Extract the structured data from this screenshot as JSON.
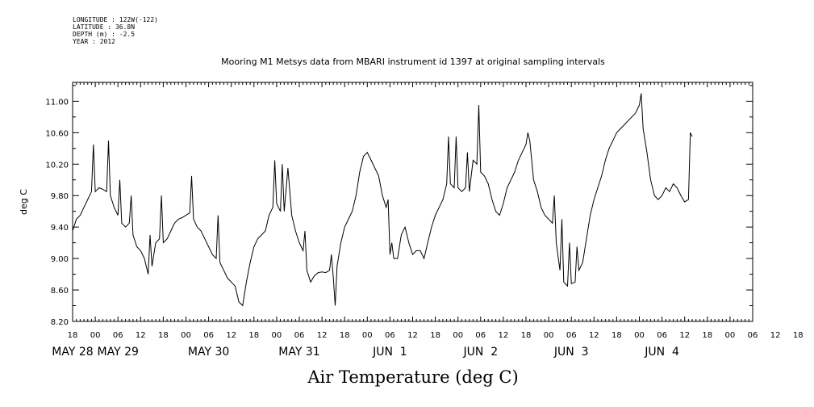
{
  "metadata_lines": [
    "LONGITUDE : 122W(-122)",
    "LATITUDE : 36.8N",
    "DEPTH (m) : -2.5",
    "YEAR : 2012"
  ],
  "chart_data": {
    "type": "line",
    "title": "Mooring M1 Metsys data from MBARI instrument id 1397 at original sampling intervals",
    "xlabel": "Air Temperature (deg C)",
    "ylabel": "deg C",
    "ylim": [
      8.2,
      11.24
    ],
    "y_ticks": [
      "8.20",
      "8.60",
      "9.00",
      "9.40",
      "9.80",
      "10.20",
      "10.60",
      "11.00"
    ],
    "x_range_hours": [
      -6,
      174
    ],
    "x_hour_ticks": [
      "18",
      "00",
      "06",
      "12",
      "18",
      "00",
      "06",
      "12",
      "18",
      "00",
      "06",
      "12",
      "18",
      "00",
      "06",
      "12",
      "18",
      "00",
      "06",
      "12",
      "18",
      "00",
      "06",
      "12",
      "18",
      "00",
      "06",
      "12",
      "18",
      "00",
      "06",
      "12",
      "18"
    ],
    "x_date_labels": [
      {
        "label": "MAY 28",
        "hour": -6
      },
      {
        "label": "MAY 29",
        "hour": 6
      },
      {
        "label": "MAY 30",
        "hour": 30
      },
      {
        "label": "MAY 31",
        "hour": 54
      },
      {
        "label": "JUN  1",
        "hour": 78
      },
      {
        "label": "JUN  2",
        "hour": 102
      },
      {
        "label": "JUN  3",
        "hour": 126
      },
      {
        "label": "JUN  4",
        "hour": 150
      }
    ],
    "grid": false,
    "series_points": [
      [
        -6,
        9.35
      ],
      [
        -5,
        9.5
      ],
      [
        -4,
        9.55
      ],
      [
        -3,
        9.65
      ],
      [
        -2,
        9.75
      ],
      [
        -1,
        9.85
      ],
      [
        -0.5,
        10.45
      ],
      [
        0,
        9.85
      ],
      [
        1,
        9.9
      ],
      [
        2,
        9.88
      ],
      [
        3,
        9.85
      ],
      [
        3.5,
        10.5
      ],
      [
        4,
        9.8
      ],
      [
        5,
        9.65
      ],
      [
        6,
        9.55
      ],
      [
        6.5,
        10.0
      ],
      [
        7,
        9.45
      ],
      [
        8,
        9.4
      ],
      [
        9,
        9.45
      ],
      [
        9.5,
        9.8
      ],
      [
        10,
        9.3
      ],
      [
        11,
        9.15
      ],
      [
        12,
        9.1
      ],
      [
        13,
        9.0
      ],
      [
        14,
        8.8
      ],
      [
        14.5,
        9.3
      ],
      [
        15,
        8.9
      ],
      [
        16,
        9.2
      ],
      [
        17,
        9.25
      ],
      [
        17.5,
        9.8
      ],
      [
        18,
        9.2
      ],
      [
        19,
        9.25
      ],
      [
        20,
        9.35
      ],
      [
        21,
        9.45
      ],
      [
        22,
        9.5
      ],
      [
        23,
        9.52
      ],
      [
        24,
        9.55
      ],
      [
        25,
        9.58
      ],
      [
        25.5,
        10.05
      ],
      [
        26,
        9.5
      ],
      [
        27,
        9.4
      ],
      [
        28,
        9.35
      ],
      [
        29,
        9.25
      ],
      [
        30,
        9.15
      ],
      [
        31,
        9.05
      ],
      [
        32,
        9.0
      ],
      [
        32.5,
        9.55
      ],
      [
        33,
        8.95
      ],
      [
        34,
        8.85
      ],
      [
        35,
        8.75
      ],
      [
        36,
        8.7
      ],
      [
        37,
        8.65
      ],
      [
        38,
        8.45
      ],
      [
        39,
        8.4
      ],
      [
        40,
        8.7
      ],
      [
        41,
        8.95
      ],
      [
        42,
        9.15
      ],
      [
        43,
        9.25
      ],
      [
        44,
        9.3
      ],
      [
        45,
        9.35
      ],
      [
        46,
        9.55
      ],
      [
        47,
        9.65
      ],
      [
        47.5,
        10.25
      ],
      [
        48,
        9.7
      ],
      [
        49,
        9.6
      ],
      [
        49.5,
        10.2
      ],
      [
        50,
        9.6
      ],
      [
        51,
        10.15
      ],
      [
        52,
        9.55
      ],
      [
        53,
        9.35
      ],
      [
        54,
        9.2
      ],
      [
        55,
        9.1
      ],
      [
        55.5,
        9.35
      ],
      [
        56,
        8.85
      ],
      [
        57,
        8.7
      ],
      [
        58,
        8.78
      ],
      [
        59,
        8.82
      ],
      [
        60,
        8.83
      ],
      [
        61,
        8.82
      ],
      [
        62,
        8.85
      ],
      [
        62.5,
        9.05
      ],
      [
        63,
        8.75
      ],
      [
        63.5,
        8.4
      ],
      [
        64,
        8.9
      ],
      [
        65,
        9.2
      ],
      [
        66,
        9.4
      ],
      [
        67,
        9.5
      ],
      [
        68,
        9.6
      ],
      [
        69,
        9.8
      ],
      [
        70,
        10.1
      ],
      [
        71,
        10.3
      ],
      [
        72,
        10.35
      ],
      [
        73,
        10.25
      ],
      [
        74,
        10.15
      ],
      [
        75,
        10.05
      ],
      [
        76,
        9.8
      ],
      [
        77,
        9.65
      ],
      [
        77.5,
        9.75
      ],
      [
        78,
        9.05
      ],
      [
        78.5,
        9.2
      ],
      [
        79,
        9.0
      ],
      [
        80,
        9.0
      ],
      [
        81,
        9.3
      ],
      [
        82,
        9.4
      ],
      [
        83,
        9.2
      ],
      [
        84,
        9.05
      ],
      [
        85,
        9.1
      ],
      [
        86,
        9.1
      ],
      [
        87,
        9.0
      ],
      [
        88,
        9.2
      ],
      [
        89,
        9.4
      ],
      [
        90,
        9.55
      ],
      [
        91,
        9.65
      ],
      [
        92,
        9.75
      ],
      [
        93,
        9.95
      ],
      [
        93.5,
        10.55
      ],
      [
        94,
        9.95
      ],
      [
        95,
        9.9
      ],
      [
        95.5,
        10.55
      ],
      [
        96,
        9.9
      ],
      [
        97,
        9.85
      ],
      [
        98,
        9.9
      ],
      [
        98.5,
        10.35
      ],
      [
        99,
        9.85
      ],
      [
        100,
        10.25
      ],
      [
        101,
        10.2
      ],
      [
        101.5,
        10.95
      ],
      [
        102,
        10.1
      ],
      [
        103,
        10.05
      ],
      [
        104,
        9.95
      ],
      [
        105,
        9.75
      ],
      [
        106,
        9.6
      ],
      [
        107,
        9.55
      ],
      [
        108,
        9.7
      ],
      [
        109,
        9.9
      ],
      [
        110,
        10.0
      ],
      [
        111,
        10.1
      ],
      [
        112,
        10.25
      ],
      [
        113,
        10.35
      ],
      [
        114,
        10.45
      ],
      [
        114.5,
        10.6
      ],
      [
        115,
        10.5
      ],
      [
        116,
        10.0
      ],
      [
        117,
        9.85
      ],
      [
        118,
        9.65
      ],
      [
        119,
        9.55
      ],
      [
        120,
        9.5
      ],
      [
        121,
        9.45
      ],
      [
        121.5,
        9.8
      ],
      [
        122,
        9.2
      ],
      [
        123,
        8.85
      ],
      [
        123.5,
        9.5
      ],
      [
        124,
        8.7
      ],
      [
        125,
        8.65
      ],
      [
        125.5,
        9.2
      ],
      [
        126,
        8.68
      ],
      [
        127,
        8.7
      ],
      [
        127.5,
        9.15
      ],
      [
        128,
        8.85
      ],
      [
        129,
        8.95
      ],
      [
        130,
        9.25
      ],
      [
        131,
        9.55
      ],
      [
        132,
        9.75
      ],
      [
        133,
        9.9
      ],
      [
        134,
        10.05
      ],
      [
        135,
        10.25
      ],
      [
        136,
        10.4
      ],
      [
        137,
        10.5
      ],
      [
        138,
        10.6
      ],
      [
        139,
        10.65
      ],
      [
        140,
        10.7
      ],
      [
        141,
        10.75
      ],
      [
        142,
        10.8
      ],
      [
        143,
        10.85
      ],
      [
        144,
        10.95
      ],
      [
        144.5,
        11.1
      ],
      [
        145,
        10.65
      ],
      [
        146,
        10.35
      ],
      [
        147,
        10.0
      ],
      [
        148,
        9.8
      ],
      [
        149,
        9.75
      ],
      [
        150,
        9.8
      ],
      [
        151,
        9.9
      ],
      [
        152,
        9.85
      ],
      [
        153,
        9.95
      ],
      [
        154,
        9.9
      ],
      [
        155,
        9.8
      ],
      [
        156,
        9.72
      ],
      [
        157,
        9.75
      ],
      [
        157.5,
        10.6
      ],
      [
        158,
        10.55
      ]
    ]
  }
}
